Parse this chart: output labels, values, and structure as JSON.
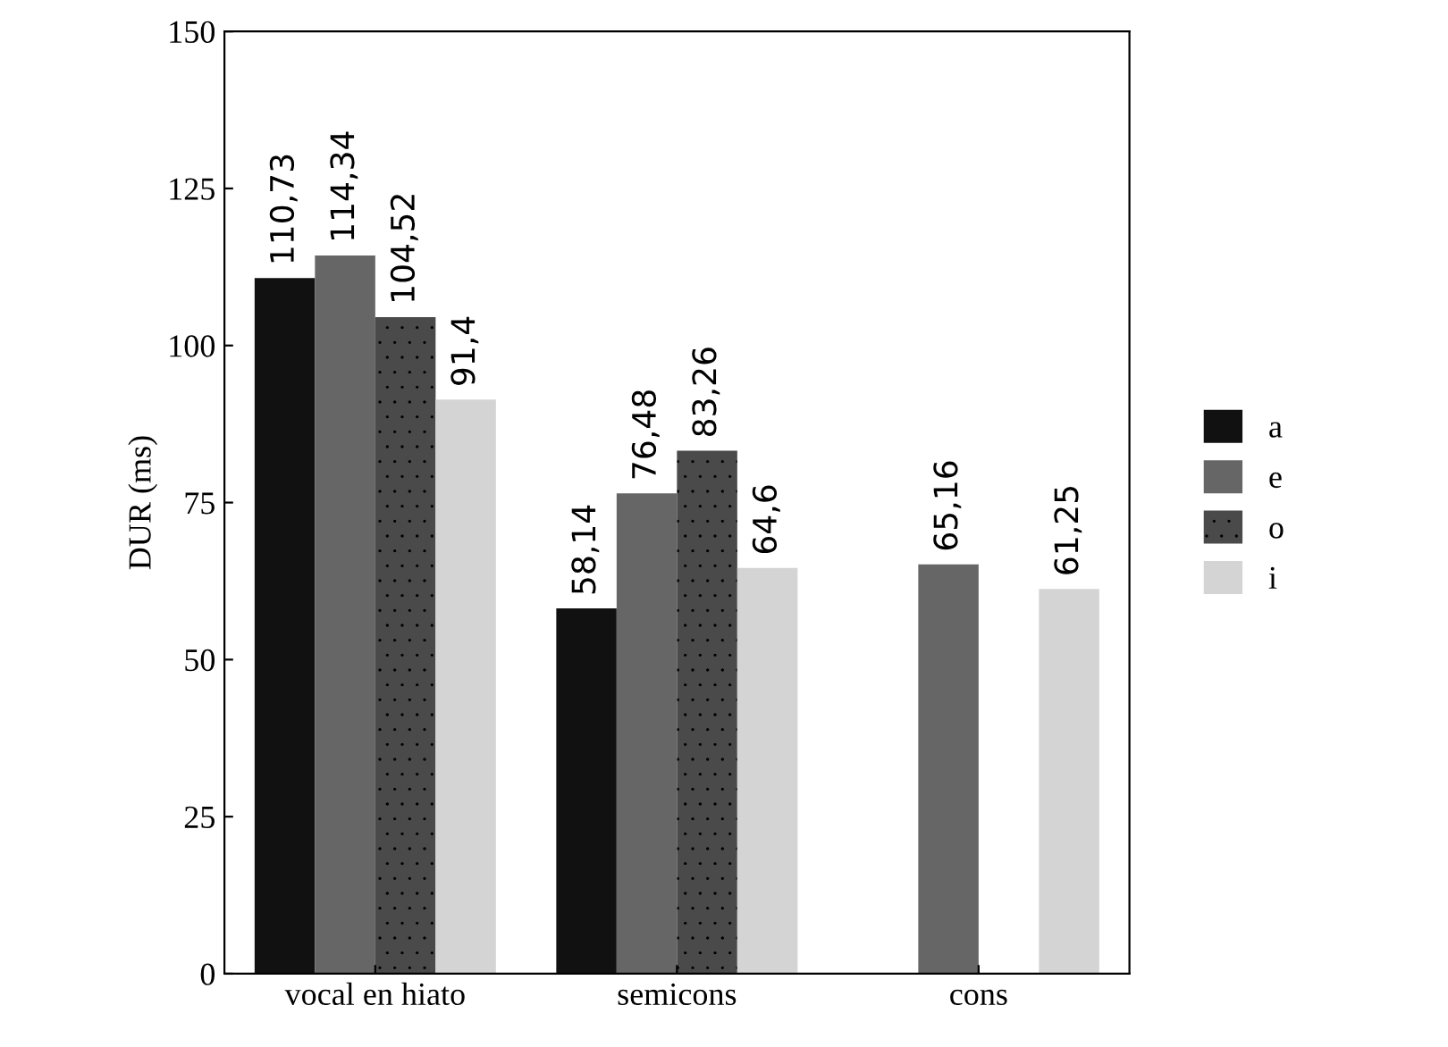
{
  "chart_data": {
    "type": "bar",
    "ylabel": "DUR (ms)",
    "categories": [
      "vocal en hiato",
      "semicons",
      "cons"
    ],
    "series": [
      {
        "name": "a",
        "color": "#111111",
        "values": [
          110.73,
          58.14,
          null
        ],
        "value_labels": [
          "110,73",
          "58,14",
          null
        ]
      },
      {
        "name": "e",
        "color": "#666666",
        "values": [
          114.34,
          76.48,
          65.16
        ],
        "value_labels": [
          "114,34",
          "76,48",
          "65,16"
        ]
      },
      {
        "name": "o",
        "color": "#4a4a4a",
        "values": [
          104.52,
          83.26,
          null
        ],
        "value_labels": [
          "104,52",
          "83,26",
          null
        ]
      },
      {
        "name": "i",
        "color": "#d4d4d4",
        "values": [
          91.4,
          64.6,
          61.25
        ],
        "value_labels": [
          "91,4",
          "64,6",
          "61,25"
        ]
      }
    ],
    "ylim": [
      0,
      150
    ],
    "yticks": [
      0,
      25,
      50,
      75,
      100,
      125,
      150
    ],
    "grid": false,
    "legend": "right"
  }
}
